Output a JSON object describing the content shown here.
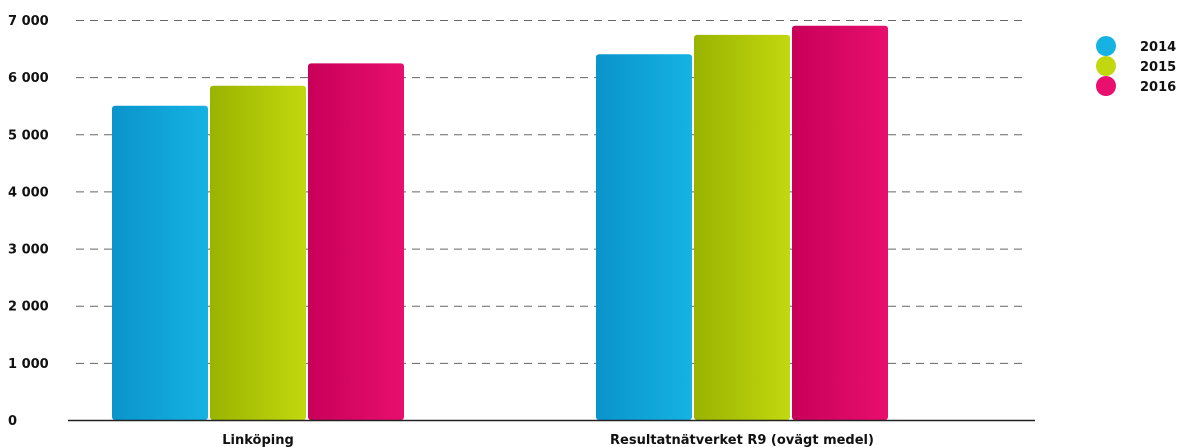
{
  "chart_data": {
    "type": "bar",
    "categories": [
      "Linköping",
      "Resultatnätverket R9 (ovägt medel)"
    ],
    "series": [
      {
        "name": "2014",
        "values": [
          5500,
          6400
        ],
        "color": "#15b2e3",
        "color_dark": "#0a94cc"
      },
      {
        "name": "2015",
        "values": [
          5850,
          6740
        ],
        "color": "#c2d80e",
        "color_dark": "#99b300"
      },
      {
        "name": "2016",
        "values": [
          6240,
          6900
        ],
        "color": "#e80f6e",
        "color_dark": "#c8005a"
      }
    ],
    "yticks": [
      "0",
      "1 000",
      "2 000",
      "3 000",
      "4 000",
      "5 000",
      "6 000",
      "7 000"
    ],
    "ylim": [
      0,
      7000
    ],
    "grid": true,
    "legend": "top-right"
  }
}
